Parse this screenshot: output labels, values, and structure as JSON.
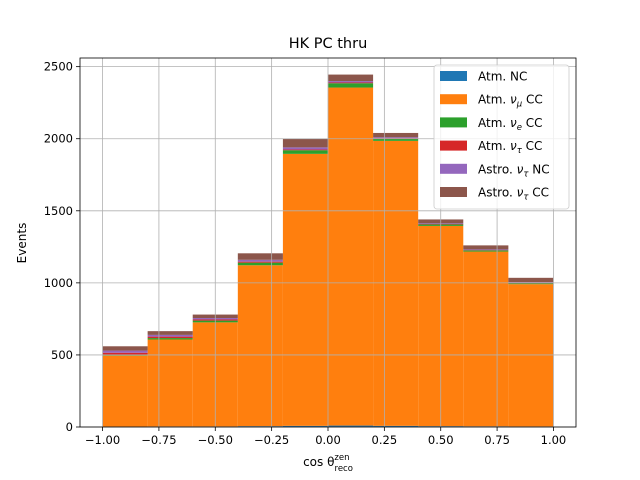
{
  "chart_data": {
    "type": "bar",
    "stacked": true,
    "title": "HK PC thru",
    "xlabel": "cos θ",
    "xlabel_sup": "zen",
    "xlabel_sub": "reco",
    "ylabel": "Events",
    "xlim": [
      -1.1,
      1.1
    ],
    "ylim": [
      0,
      2560
    ],
    "grid": true,
    "legend_position": "top-right",
    "bin_edges": [
      -1.0,
      -0.8,
      -0.6,
      -0.4,
      -0.2,
      0.0,
      0.2,
      0.4,
      0.6,
      0.8,
      1.0
    ],
    "x_ticks": [
      {
        "value": -1.0,
        "label": "−1.00"
      },
      {
        "value": -0.75,
        "label": "−0.75"
      },
      {
        "value": -0.5,
        "label": "−0.50"
      },
      {
        "value": -0.25,
        "label": "−0.25"
      },
      {
        "value": 0.0,
        "label": "0.00"
      },
      {
        "value": 0.25,
        "label": "0.25"
      },
      {
        "value": 0.5,
        "label": "0.50"
      },
      {
        "value": 0.75,
        "label": "0.75"
      },
      {
        "value": 1.0,
        "label": "1.00"
      }
    ],
    "y_ticks": [
      {
        "value": 0,
        "label": "0"
      },
      {
        "value": 500,
        "label": "500"
      },
      {
        "value": 1000,
        "label": "1000"
      },
      {
        "value": 1500,
        "label": "1500"
      },
      {
        "value": 2000,
        "label": "2000"
      },
      {
        "value": 2500,
        "label": "2500"
      }
    ],
    "series": [
      {
        "name": "Atm. NC",
        "label_prefix": "Atm. ",
        "label_greek": "ν",
        "label_sub": "",
        "label_suffix": "NC",
        "plain": true,
        "color": "#1f77b4",
        "values": [
          3,
          4,
          4,
          6,
          8,
          10,
          8,
          6,
          5,
          4
        ]
      },
      {
        "name": "Atm. νμ CC",
        "label_prefix": "Atm. ",
        "label_greek": "ν",
        "label_sub": "μ",
        "label_suffix": " CC",
        "plain": false,
        "color": "#ff7f0e",
        "values": [
          492,
          603,
          722,
          1116,
          1887,
          2345,
          1977,
          1389,
          1212,
          987
        ]
      },
      {
        "name": "Atm. νe CC",
        "label_prefix": "Atm. ",
        "label_greek": "ν",
        "label_sub": "e",
        "label_suffix": " CC",
        "plain": false,
        "color": "#2ca02c",
        "values": [
          8,
          10,
          12,
          18,
          25,
          30,
          15,
          10,
          8,
          6
        ]
      },
      {
        "name": "Atm. ντ CC",
        "label_prefix": "Atm. ",
        "label_greek": "ν",
        "label_sub": "τ",
        "label_suffix": " CC",
        "plain": false,
        "color": "#d62728",
        "values": [
          12,
          10,
          8,
          7,
          5,
          5,
          4,
          3,
          2,
          2
        ]
      },
      {
        "name": "Astro. ντ NC",
        "label_prefix": "Astro. ",
        "label_greek": "ν",
        "label_sub": "τ",
        "label_suffix": " NC",
        "plain": false,
        "color": "#9467bd",
        "values": [
          15,
          12,
          10,
          13,
          15,
          10,
          6,
          5,
          5,
          6
        ]
      },
      {
        "name": "Astro. ντ CC",
        "label_prefix": "Astro. ",
        "label_greek": "ν",
        "label_sub": "τ",
        "label_suffix": " CC",
        "plain": false,
        "color": "#8c564b",
        "values": [
          30,
          26,
          24,
          45,
          60,
          45,
          30,
          27,
          28,
          30
        ]
      }
    ]
  }
}
